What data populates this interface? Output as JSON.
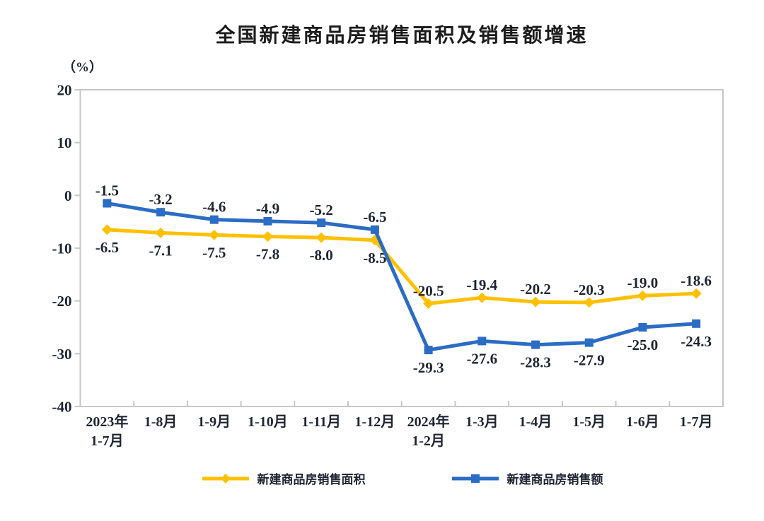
{
  "title": "全国新建商品房销售面积及销售额增速",
  "unit_label": "（%）",
  "chart_data": {
    "type": "line",
    "categories": [
      "2023年\n1-7月",
      "1-8月",
      "1-9月",
      "1-10月",
      "1-11月",
      "1-12月",
      "2024年\n1-2月",
      "1-3月",
      "1-4月",
      "1-5月",
      "1-6月",
      "1-7月"
    ],
    "series": [
      {
        "name": "新建商品房销售面积",
        "color": "#FFC000",
        "marker": "diamond",
        "values": [
          -6.5,
          -7.1,
          -7.5,
          -7.8,
          -8.0,
          -8.5,
          -20.5,
          -19.4,
          -20.2,
          -20.3,
          -19.0,
          -18.6
        ],
        "labels": [
          "-6.5",
          "-7.1",
          "-7.5",
          "-7.8",
          "-8.0",
          "-8.5",
          "-20.5",
          "-19.4",
          "-20.2",
          "-20.3",
          "-19.0",
          "-18.6"
        ],
        "label_side": [
          "below",
          "below",
          "below",
          "below",
          "below",
          "below",
          "above",
          "above",
          "above",
          "above",
          "above",
          "above"
        ]
      },
      {
        "name": "新建商品房销售额",
        "color": "#2B6CC4",
        "marker": "square",
        "values": [
          -1.5,
          -3.2,
          -4.6,
          -4.9,
          -5.2,
          -6.5,
          -29.3,
          -27.6,
          -28.3,
          -27.9,
          -25.0,
          -24.3
        ],
        "labels": [
          "-1.5",
          "-3.2",
          "-4.6",
          "-4.9",
          "-5.2",
          "-6.5",
          "-29.3",
          "-27.6",
          "-28.3",
          "-27.9",
          "-25.0",
          "-24.3"
        ],
        "label_side": [
          "above",
          "above",
          "above",
          "above",
          "above",
          "above",
          "below",
          "below",
          "below",
          "below",
          "below",
          "below"
        ]
      }
    ],
    "ylim": [
      -40,
      20
    ],
    "yticks": [
      20,
      10,
      0,
      -10,
      -20,
      -30,
      -40
    ],
    "xlabel": "",
    "ylabel": "（%）",
    "grid": false,
    "legend_position": "bottom",
    "axis_color": "#C6C6C6",
    "text_color": "#1f2433"
  }
}
